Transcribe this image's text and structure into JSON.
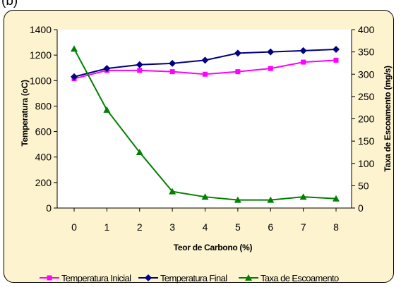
{
  "figure_label": "(b)",
  "chart_data": {
    "type": "line",
    "title": "",
    "x": [
      0,
      1,
      2,
      3,
      4,
      5,
      6,
      7,
      8
    ],
    "xlabel": "Teor de Carbono (%)",
    "ylabel_left": "Temperatura (oC)",
    "ylabel_right": "Taxa de Escoamento (mg/s)",
    "ylim_left": [
      0,
      1400
    ],
    "ylim_right": [
      0,
      400
    ],
    "xticks": [
      "0",
      "1",
      "2",
      "3",
      "4",
      "5",
      "6",
      "7",
      "8"
    ],
    "yticks_left": [
      "0",
      "200",
      "400",
      "600",
      "800",
      "1000",
      "1200",
      "1400"
    ],
    "yticks_right": [
      "0",
      "50",
      "100",
      "150",
      "200",
      "250",
      "300",
      "350",
      "400"
    ],
    "grid": false,
    "legend_position": "bottom",
    "series": [
      {
        "name": "Temperatura Inicial",
        "axis": "left",
        "color": "#ff00ff",
        "marker": "square",
        "values": [
          1015,
          1080,
          1080,
          1070,
          1050,
          1070,
          1095,
          1145,
          1160
        ]
      },
      {
        "name": "Temperatura Final",
        "axis": "left",
        "color": "#000080",
        "marker": "diamond",
        "values": [
          1030,
          1095,
          1125,
          1135,
          1160,
          1215,
          1225,
          1235,
          1245
        ]
      },
      {
        "name": "Taxa de Escoamento",
        "axis": "right",
        "color": "#008000",
        "marker": "triangle",
        "values": [
          357,
          220,
          125,
          37,
          25,
          18,
          18,
          25,
          21
        ]
      }
    ]
  }
}
